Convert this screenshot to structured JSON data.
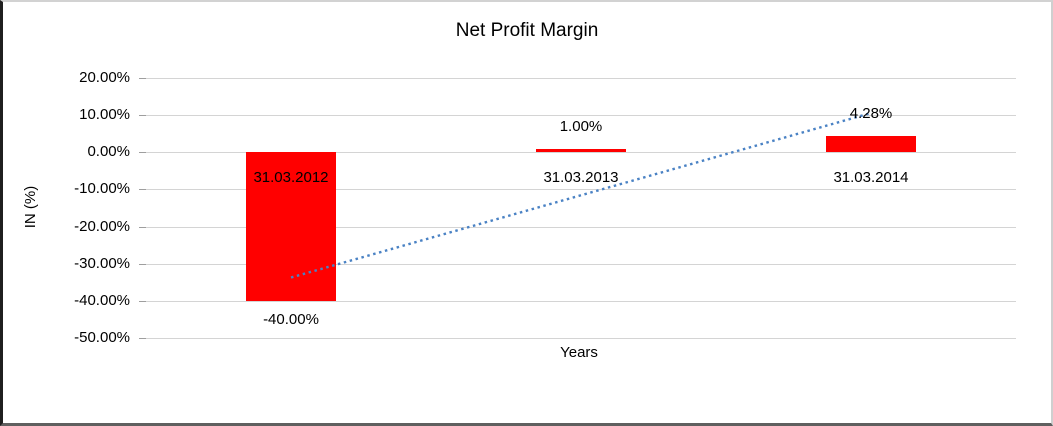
{
  "chart_data": {
    "type": "bar",
    "title": "Net Profit Margin",
    "xlabel": "Years",
    "ylabel": "IN (%)",
    "categories": [
      "31.03.2012",
      "31.03.2013",
      "31.03.2014"
    ],
    "series": [
      {
        "name": "Net Profit Margin",
        "values": [
          -40.0,
          1.0,
          4.28
        ]
      }
    ],
    "data_labels": [
      "-40.00%",
      "1.00%",
      "4.28%"
    ],
    "ylim": [
      -50,
      20
    ],
    "ytick_step": 10,
    "ytick_labels": [
      "20.00%",
      "10.00%",
      "0.00%",
      "-10.00%",
      "-20.00%",
      "-30.00%",
      "-40.00%",
      "-50.00%"
    ],
    "grid": true,
    "legend": "none",
    "bar_color": "#ff0000",
    "gridline_color": "#d4d4d4",
    "text_color": "#000000",
    "trendline": {
      "type": "linear",
      "style": "dotted",
      "color": "#4a82c4"
    }
  }
}
